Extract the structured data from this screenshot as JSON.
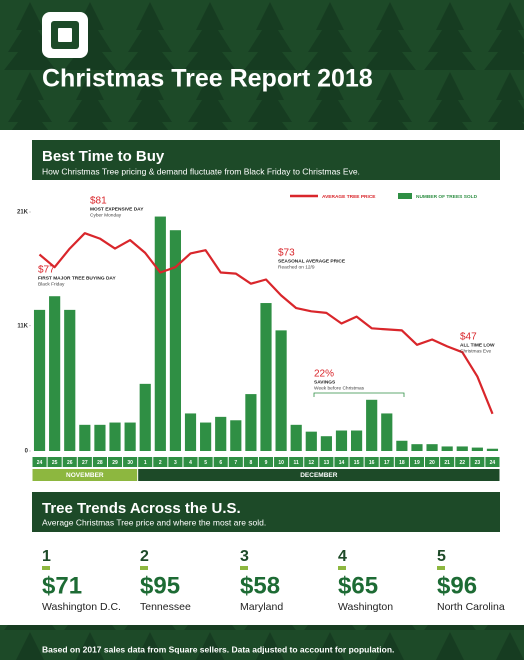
{
  "header": {
    "title": "Christmas Tree Report 2018"
  },
  "section1": {
    "title": "Best Time to Buy",
    "subtitle": "How Christmas Tree pricing & demand fluctuate from Black Friday to Christmas Eve."
  },
  "chart_data": {
    "type": "bar",
    "categories": [
      "24",
      "25",
      "26",
      "27",
      "28",
      "29",
      "30",
      "1",
      "2",
      "3",
      "4",
      "5",
      "6",
      "7",
      "8",
      "9",
      "10",
      "11",
      "12",
      "13",
      "14",
      "15",
      "16",
      "17",
      "18",
      "19",
      "20",
      "21",
      "22",
      "23",
      "24"
    ],
    "months": [
      "NOVEMBER",
      "DECEMBER"
    ],
    "series": [
      {
        "name": "AVERAGE TREE PRICE",
        "type": "line",
        "axis": "y2",
        "color": "#d9262b",
        "values": [
          77,
          74.6,
          78.1,
          81,
          80,
          78.1,
          79.7,
          77.3,
          73.6,
          74.6,
          77.2,
          77.8,
          73.6,
          73.4,
          71.5,
          72.3,
          69.3,
          66.9,
          66.3,
          66,
          64,
          65.3,
          63.1,
          62.9,
          62.7,
          60,
          61,
          59.7,
          58.6,
          54,
          47
        ]
      },
      {
        "name": "NUMBER OF TREES SOLD",
        "type": "bar",
        "color": "#2f8f44",
        "values": [
          12400,
          13600,
          12400,
          2300,
          2300,
          2500,
          2500,
          5900,
          20600,
          19400,
          3300,
          2500,
          3000,
          2700,
          5000,
          13000,
          10600,
          2300,
          1700,
          1300,
          1800,
          1800,
          4500,
          3300,
          900,
          600,
          600,
          400,
          400,
          300,
          200
        ]
      }
    ],
    "ylim": [
      0,
      21000
    ],
    "yticks": [
      0,
      {
        "value": 11000,
        "label": "11K"
      },
      {
        "value": 21000,
        "label": "21K"
      }
    ],
    "y2lim": [
      40,
      85
    ],
    "annotations": [
      {
        "label": "$77",
        "title": "FIRST MAJOR TREE BUYING DAY",
        "note": "Black Friday"
      },
      {
        "label": "$81",
        "title": "MOST EXPENSIVE DAY",
        "note": "Cyber Monday"
      },
      {
        "label": "$73",
        "title": "SEASONAL AVERAGE PRICE",
        "note": "Reached on 12/9"
      },
      {
        "label": "22%",
        "title": "SAVINGS",
        "note": "Week before Christmas"
      },
      {
        "label": "$47",
        "title": "ALL TIME LOW",
        "note": "Christmas Eve"
      }
    ]
  },
  "section2": {
    "title": "Tree Trends Across the U.S.",
    "subtitle": "Average Christmas Tree price and where the most are sold.",
    "items": [
      {
        "rank": 1,
        "price": "$71",
        "place": "Washington D.C."
      },
      {
        "rank": 2,
        "price": "$95",
        "place": "Tennessee"
      },
      {
        "rank": 3,
        "price": "$58",
        "place": "Maryland"
      },
      {
        "rank": 4,
        "price": "$65",
        "place": "Washington"
      },
      {
        "rank": 5,
        "price": "$96",
        "place": "North Carolina"
      }
    ]
  },
  "footer": {
    "text": "Based on 2017 sales data from Square sellers. Data adjusted to account for population."
  }
}
